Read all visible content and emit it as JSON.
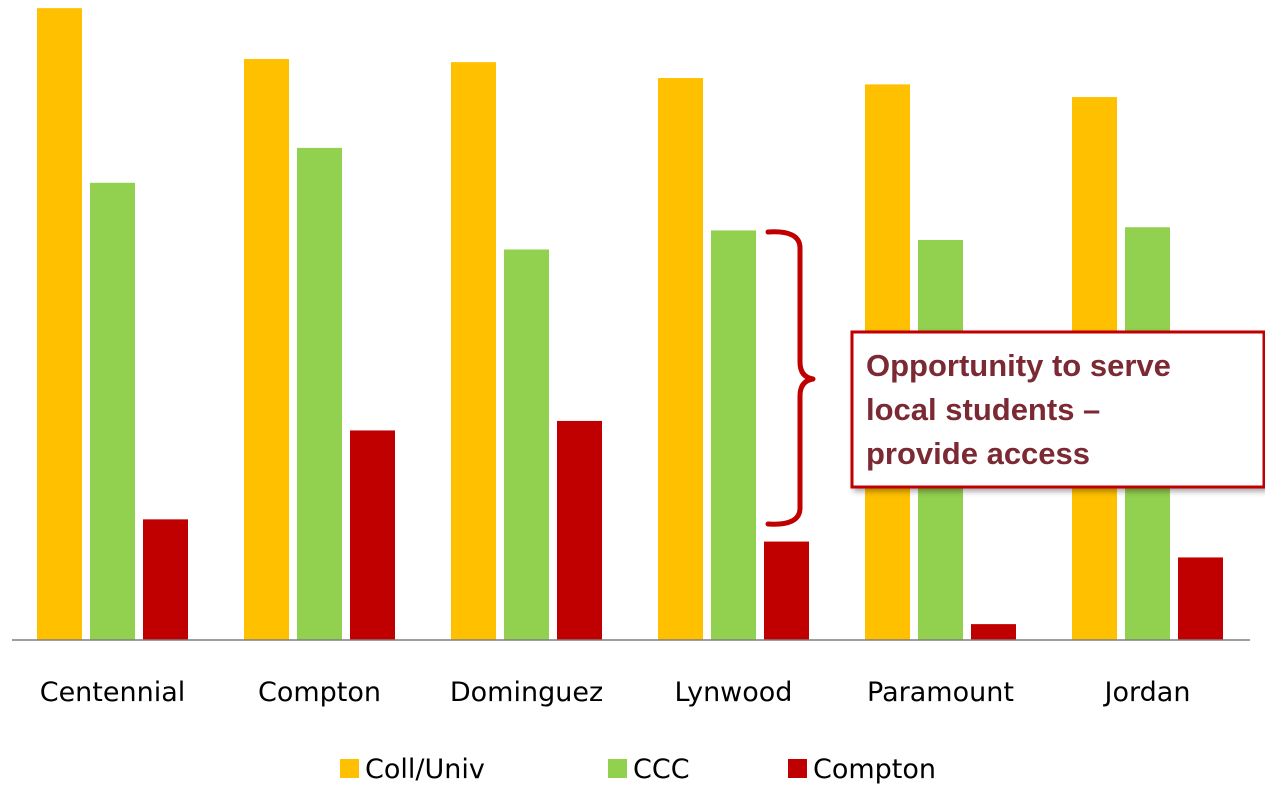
{
  "chart_data": {
    "type": "bar",
    "categories": [
      "Centennial",
      "Compton",
      "Dominguez",
      "Lynwood",
      "Paramount",
      "Jordan"
    ],
    "series": [
      {
        "name": "Coll/Univ",
        "color": "#ffc000",
        "values": [
          99.5,
          91.5,
          91,
          88.5,
          87.5,
          85.5
        ]
      },
      {
        "name": "CCC",
        "color": "#92d050",
        "values": [
          72,
          77.5,
          61.5,
          64.5,
          63,
          65
        ]
      },
      {
        "name": "Compton",
        "color": "#c00000",
        "values": [
          19,
          33,
          34.5,
          15.5,
          2.5,
          13
        ]
      }
    ],
    "ylim": [
      0,
      100
    ],
    "grid": false,
    "legend_position": "bottom",
    "title": "",
    "xlabel": "",
    "ylabel": "",
    "annotation": {
      "lines": [
        "Opportunity to serve",
        "local  students –",
        "provide access"
      ],
      "border_color": "#c00000",
      "text_color": "#7b2a33"
    }
  }
}
